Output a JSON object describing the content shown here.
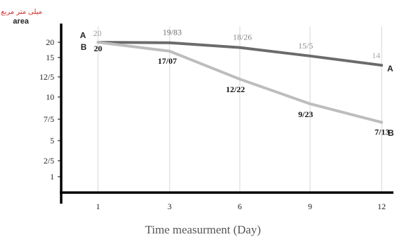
{
  "chart_data": {
    "type": "line",
    "x": [
      1,
      3,
      6,
      9,
      12
    ],
    "xticklabels": [
      "1",
      "3",
      "6",
      "9",
      "12"
    ],
    "xlabel": "Time measurment (Day)",
    "ylabel_persian": "میلی متر مربع",
    "ylabel": "area",
    "yticks": [
      1,
      2.5,
      5,
      7.5,
      10,
      12.5,
      15,
      20
    ],
    "yticklabels": [
      "1",
      "2/5",
      "5",
      "7/5",
      "10",
      "12/5",
      "15",
      "20"
    ],
    "grid": "vertical",
    "series": [
      {
        "name": "A",
        "color": "#6b6b6b",
        "values": [
          20,
          19.83,
          18.26,
          15.5,
          14
        ],
        "labels": [
          "20",
          "19/83",
          "18/26",
          "15/5",
          "14"
        ]
      },
      {
        "name": "B",
        "color": "#bdbdbd",
        "values": [
          20,
          17.07,
          12.22,
          9.23,
          7.13
        ],
        "labels": [
          "20",
          "17/07",
          "12/22",
          "9/23",
          "7/13"
        ]
      }
    ]
  }
}
